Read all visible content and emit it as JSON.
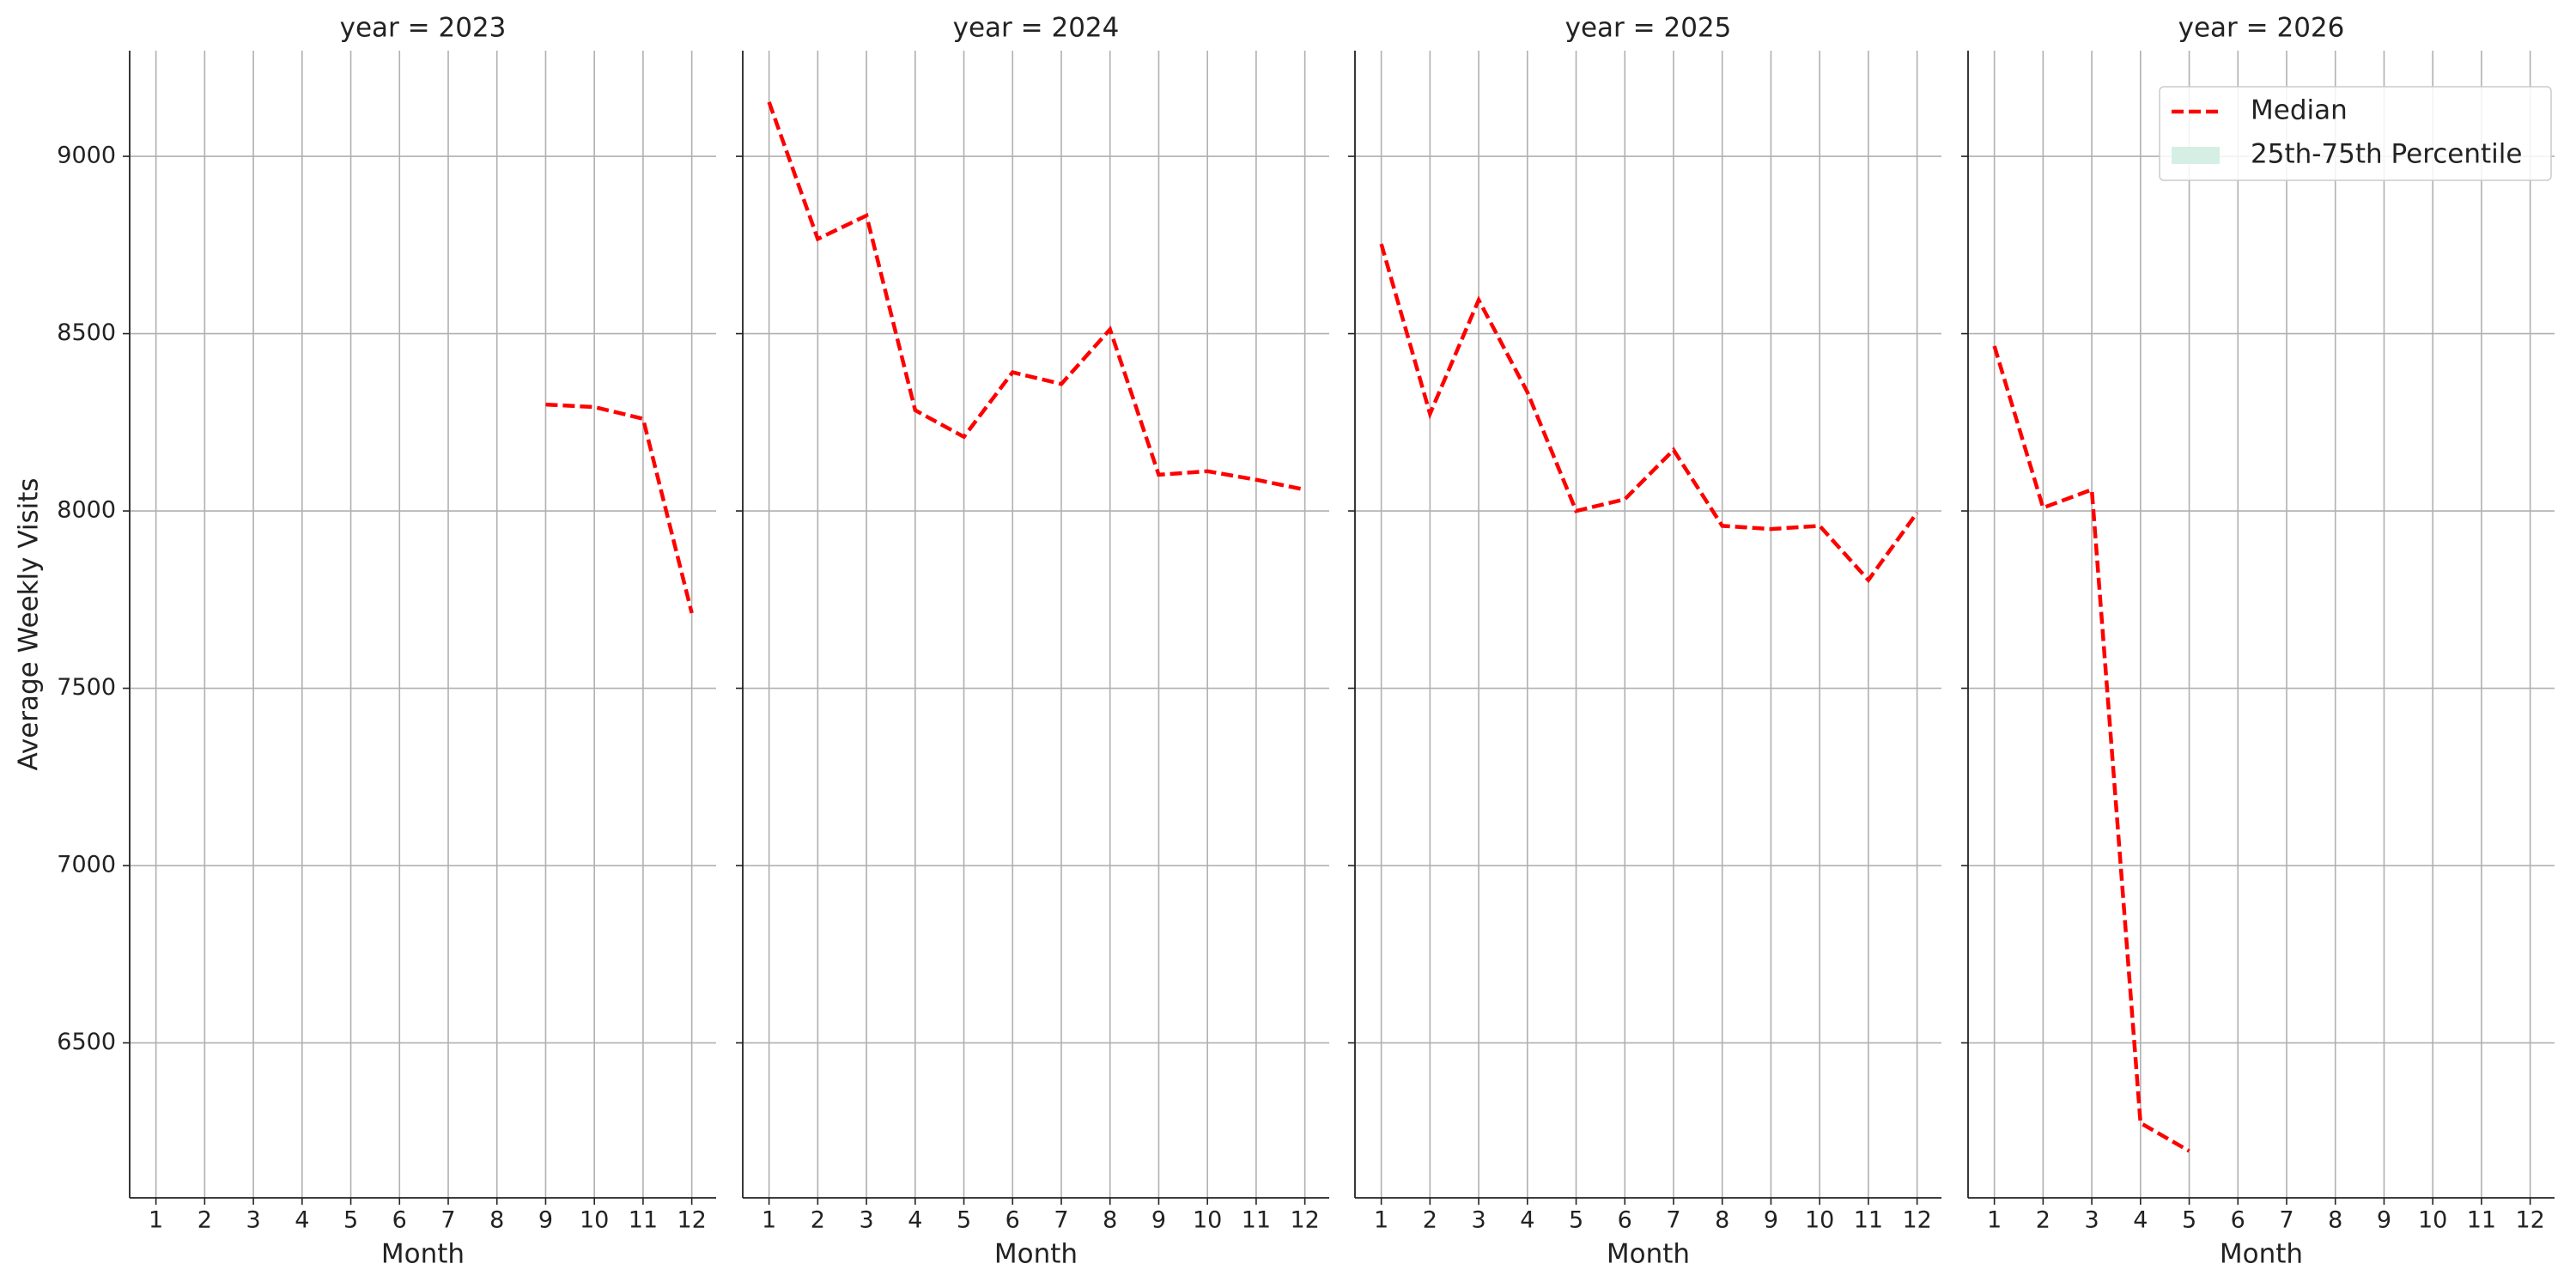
{
  "chart_data": [
    {
      "type": "line",
      "title": "year = 2023",
      "x": [
        1,
        2,
        3,
        4,
        5,
        6,
        7,
        8,
        9,
        10,
        11,
        12
      ],
      "xlim": [
        0.46,
        12.5
      ],
      "xticks": [
        1,
        2,
        3,
        4,
        5,
        6,
        7,
        8,
        9,
        10,
        11,
        12
      ],
      "x_label": "Month",
      "y_label": "Average Weekly Visits",
      "ylim": [
        6063,
        9298
      ],
      "yticks": [
        6500,
        7000,
        7500,
        8000,
        8500,
        9000
      ],
      "grid": true,
      "series": [
        {
          "name": "Median",
          "color": "#ff0000",
          "values": [
            null,
            null,
            null,
            null,
            null,
            null,
            null,
            null,
            8300,
            8293,
            8260,
            7712
          ]
        }
      ]
    },
    {
      "type": "line",
      "title": "year = 2024",
      "x": [
        1,
        2,
        3,
        4,
        5,
        6,
        7,
        8,
        9,
        10,
        11,
        12
      ],
      "xlim": [
        0.46,
        12.5
      ],
      "xticks": [
        1,
        2,
        3,
        4,
        5,
        6,
        7,
        8,
        9,
        10,
        11,
        12
      ],
      "x_label": "Month",
      "grid": true,
      "series": [
        {
          "name": "Median",
          "color": "#ff0000",
          "values": [
            9153,
            8767,
            8833,
            8284,
            8209,
            8391,
            8358,
            8512,
            8102,
            8112,
            8088,
            8060
          ]
        }
      ]
    },
    {
      "type": "line",
      "title": "year = 2025",
      "x": [
        1,
        2,
        3,
        4,
        5,
        6,
        7,
        8,
        9,
        10,
        11,
        12
      ],
      "xlim": [
        0.46,
        12.5
      ],
      "xticks": [
        1,
        2,
        3,
        4,
        5,
        6,
        7,
        8,
        9,
        10,
        11,
        12
      ],
      "x_label": "Month",
      "grid": true,
      "series": [
        {
          "name": "Median",
          "color": "#ff0000",
          "values": [
            8753,
            8274,
            8595,
            8335,
            8000,
            8033,
            8172,
            7958,
            7949,
            7958,
            7805,
            7995
          ]
        }
      ]
    },
    {
      "type": "line",
      "title": "year = 2026",
      "x": [
        1,
        2,
        3,
        4,
        5,
        6,
        7,
        8,
        9,
        10,
        11,
        12
      ],
      "xlim": [
        0.46,
        12.5
      ],
      "xticks": [
        1,
        2,
        3,
        4,
        5,
        6,
        7,
        8,
        9,
        10,
        11,
        12
      ],
      "x_label": "Month",
      "grid": true,
      "legend": "upper right",
      "series": [
        {
          "name": "Median",
          "color": "#ff0000",
          "values": [
            8465,
            8009,
            8060,
            6274,
            6195,
            null,
            null,
            null,
            null,
            null,
            null,
            null
          ]
        },
        {
          "name": "25th-75th Percentile",
          "color": "#d5efe5",
          "values": [
            null,
            null,
            null,
            null,
            null,
            null,
            null,
            null,
            null,
            null,
            null,
            null
          ]
        }
      ]
    }
  ]
}
